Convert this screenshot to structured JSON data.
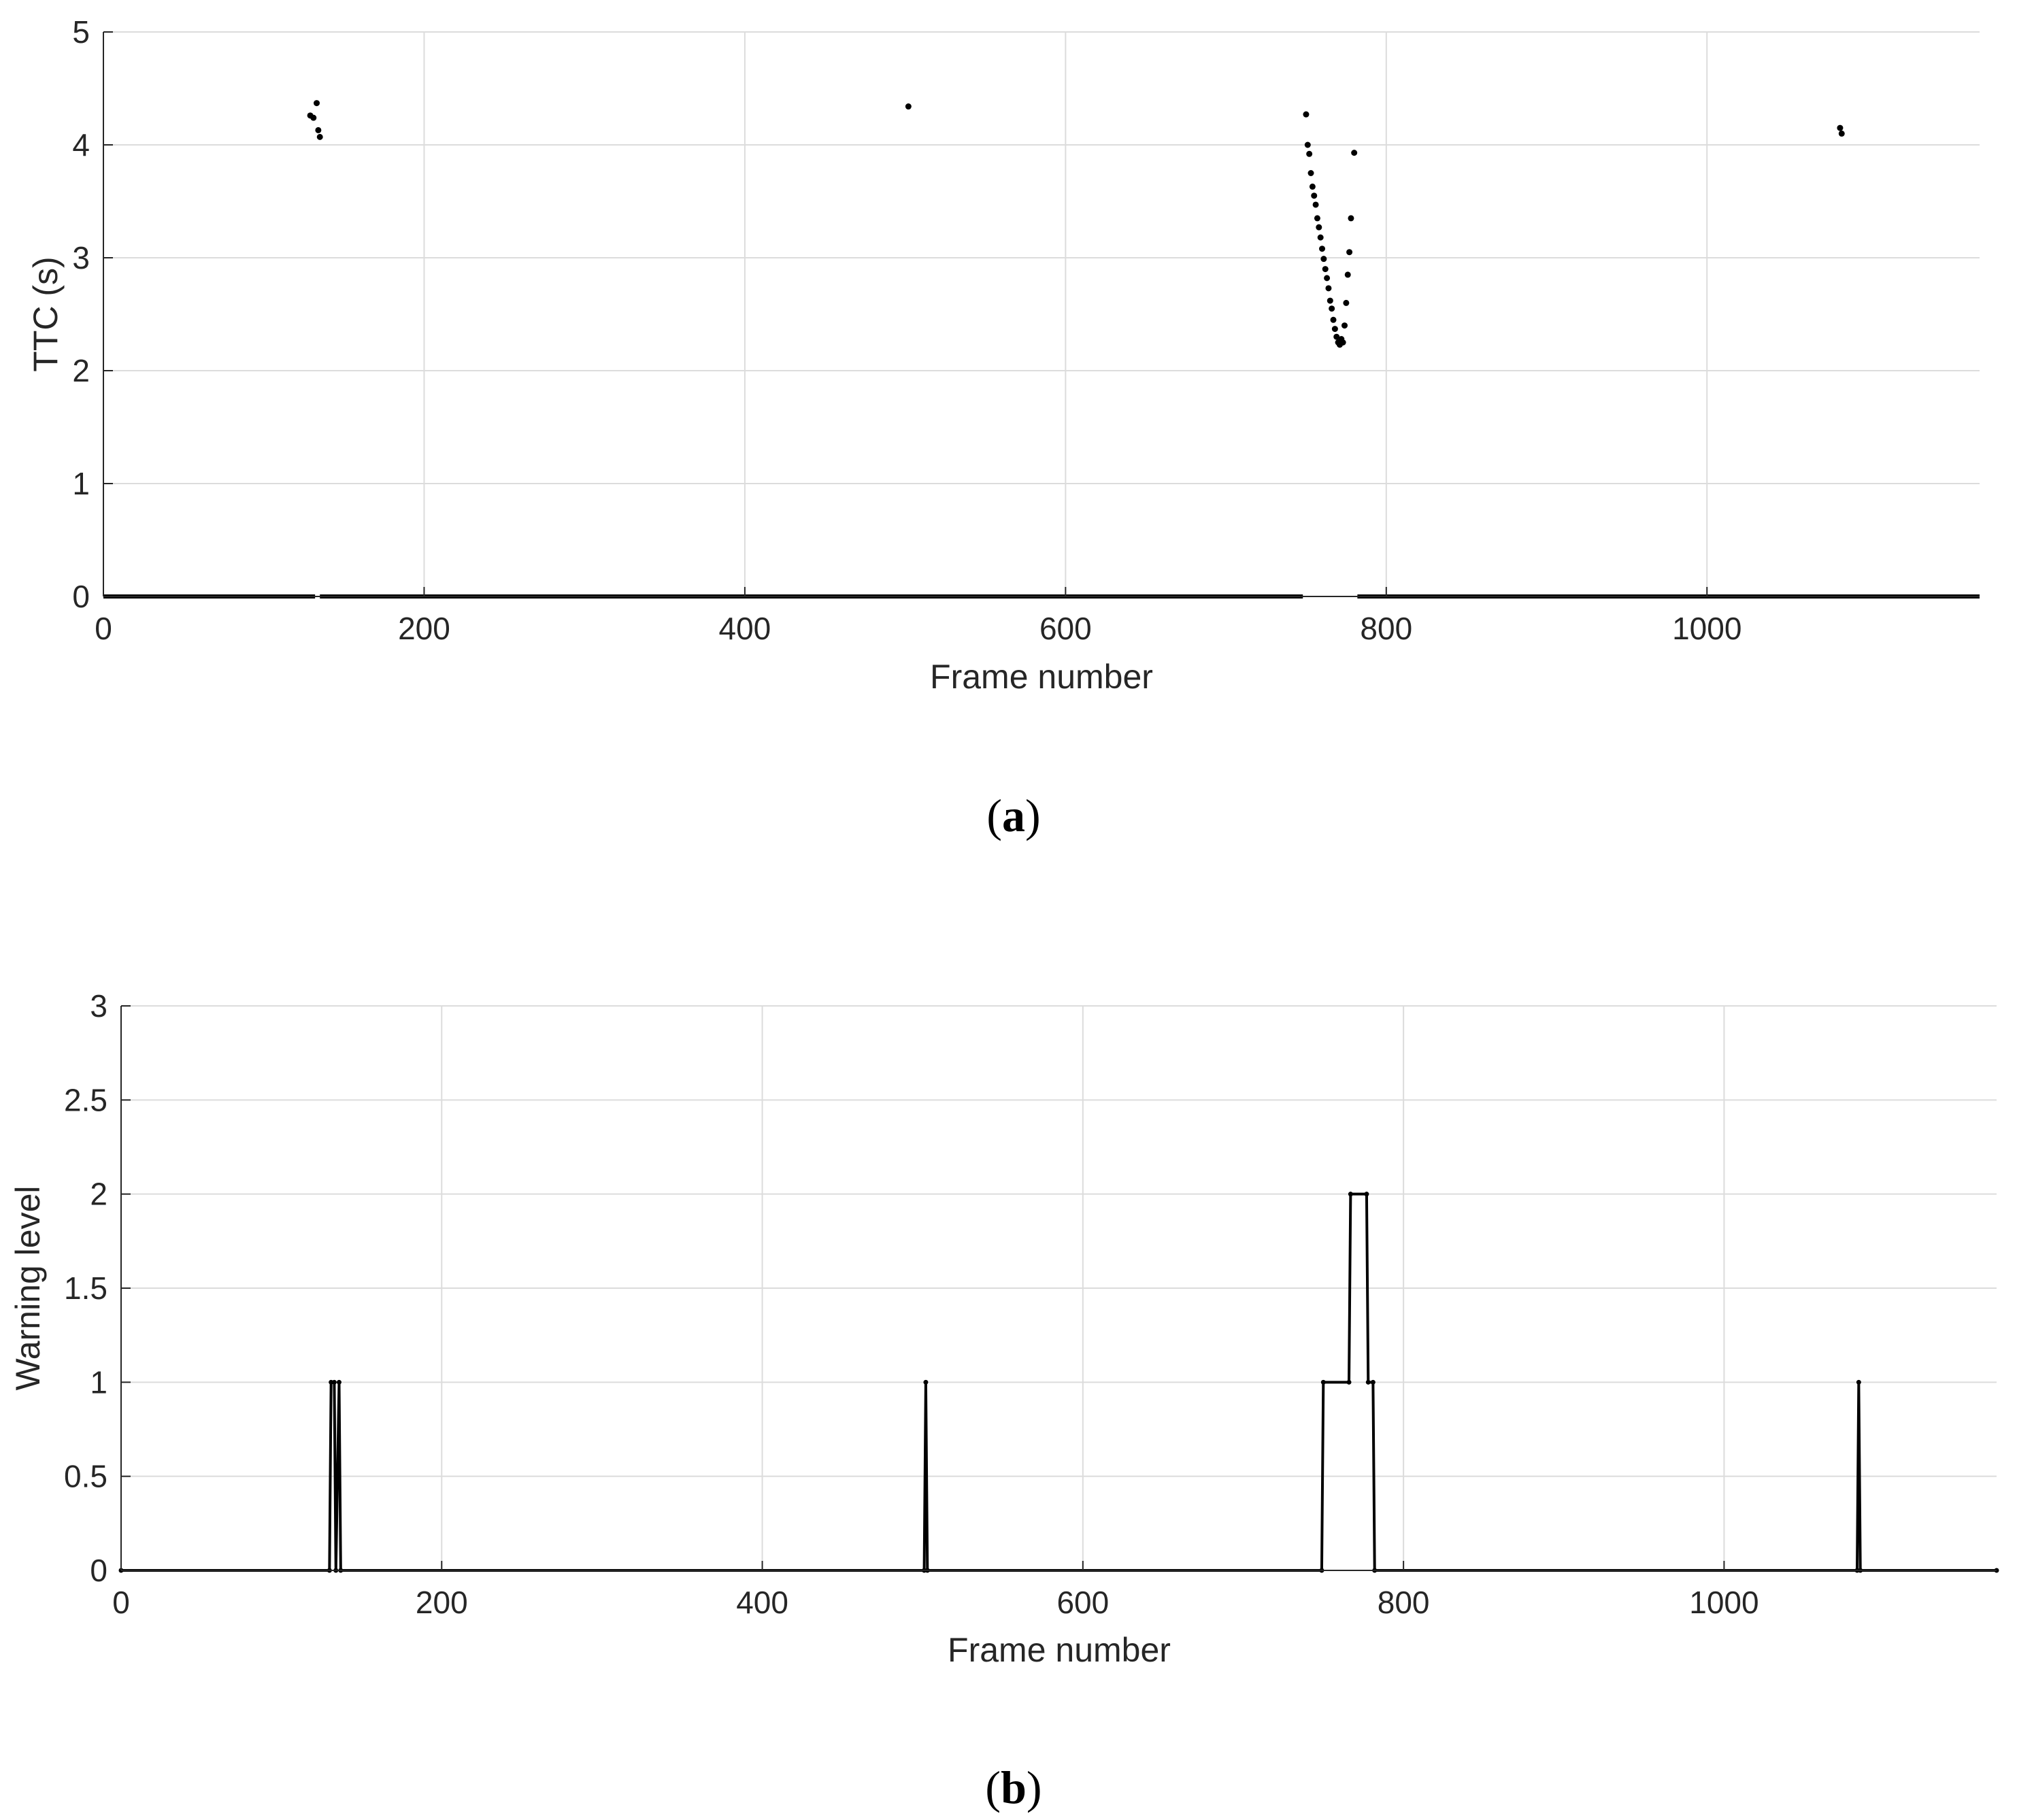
{
  "chart_data": [
    {
      "type": "scatter",
      "panel_label": "a",
      "xlabel": "Frame number",
      "ylabel": "TTC (s)",
      "xlim": [
        0,
        1170
      ],
      "ylim": [
        0,
        5
      ],
      "xticks": [
        0,
        200,
        400,
        600,
        800,
        1000
      ],
      "yticks": [
        0,
        1,
        2,
        3,
        4,
        5
      ],
      "grid": true,
      "baseline_zero_segments": [
        [
          0,
          132
        ],
        [
          135,
          748
        ],
        [
          782,
          1170
        ]
      ],
      "points": [
        {
          "x": 129,
          "y": 4.26
        },
        {
          "x": 131,
          "y": 4.24
        },
        {
          "x": 133,
          "y": 4.37
        },
        {
          "x": 134,
          "y": 4.13
        },
        {
          "x": 135,
          "y": 4.07
        },
        {
          "x": 502,
          "y": 4.34
        },
        {
          "x": 750,
          "y": 4.27
        },
        {
          "x": 751,
          "y": 4.0
        },
        {
          "x": 752,
          "y": 3.92
        },
        {
          "x": 753,
          "y": 3.75
        },
        {
          "x": 754,
          "y": 3.63
        },
        {
          "x": 755,
          "y": 3.55
        },
        {
          "x": 756,
          "y": 3.47
        },
        {
          "x": 757,
          "y": 3.35
        },
        {
          "x": 758,
          "y": 3.27
        },
        {
          "x": 759,
          "y": 3.18
        },
        {
          "x": 760,
          "y": 3.08
        },
        {
          "x": 761,
          "y": 2.99
        },
        {
          "x": 762,
          "y": 2.9
        },
        {
          "x": 763,
          "y": 2.82
        },
        {
          "x": 764,
          "y": 2.73
        },
        {
          "x": 765,
          "y": 2.62
        },
        {
          "x": 766,
          "y": 2.55
        },
        {
          "x": 767,
          "y": 2.45
        },
        {
          "x": 768,
          "y": 2.37
        },
        {
          "x": 769,
          "y": 2.3
        },
        {
          "x": 770,
          "y": 2.25
        },
        {
          "x": 771,
          "y": 2.23
        },
        {
          "x": 772,
          "y": 2.28
        },
        {
          "x": 773,
          "y": 2.25
        },
        {
          "x": 774,
          "y": 2.4
        },
        {
          "x": 775,
          "y": 2.6
        },
        {
          "x": 776,
          "y": 2.85
        },
        {
          "x": 777,
          "y": 3.05
        },
        {
          "x": 778,
          "y": 3.35
        },
        {
          "x": 780,
          "y": 3.93
        },
        {
          "x": 1083,
          "y": 4.15
        },
        {
          "x": 1084,
          "y": 4.1
        }
      ]
    },
    {
      "type": "line",
      "panel_label": "b",
      "xlabel": "Frame number",
      "ylabel": "Warning level",
      "xlim": [
        0,
        1170
      ],
      "ylim": [
        0,
        3
      ],
      "xticks": [
        0,
        200,
        400,
        600,
        800,
        1000
      ],
      "yticks": [
        0,
        0.5,
        1,
        1.5,
        2,
        2.5,
        3
      ],
      "grid": true,
      "x": [
        0,
        130,
        131,
        133,
        134,
        136,
        137,
        1170
      ],
      "series": [
        {
          "x": [
            0,
            130,
            131,
            133,
            134,
            136,
            137,
            501,
            502,
            503,
            749,
            750,
            766,
            767,
            777,
            778,
            781,
            782,
            1083,
            1084,
            1085,
            1170
          ],
          "values": [
            0,
            0,
            1,
            1,
            0,
            1,
            0,
            0,
            1,
            0,
            0,
            1,
            1,
            2,
            2,
            1,
            1,
            0,
            0,
            1,
            0,
            0
          ]
        }
      ]
    }
  ]
}
